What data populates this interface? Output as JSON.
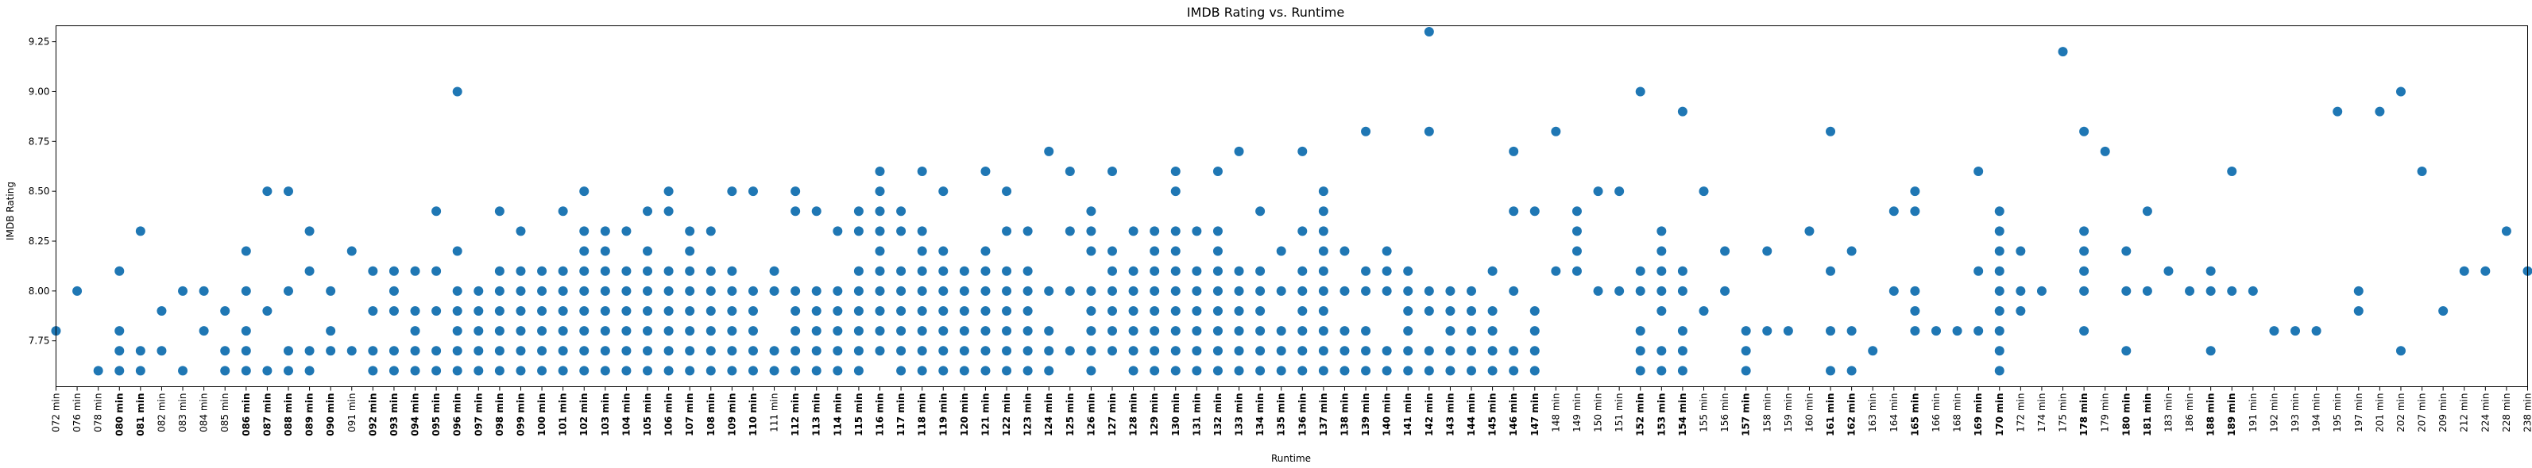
{
  "chart_data": {
    "type": "scatter",
    "title": "IMDB Rating vs. Runtime",
    "xlabel": "Runtime",
    "ylabel": "IMDB Rating",
    "ylim": [
      7.52,
      9.33
    ],
    "yticks": [
      7.75,
      8.0,
      8.25,
      8.5,
      8.75,
      9.0,
      9.25
    ],
    "ytick_labels": [
      "7.75",
      "8.00",
      "8.25",
      "8.50",
      "8.75",
      "9.00",
      "9.25"
    ],
    "grid": false,
    "color": "#1f77b4",
    "categories": [
      "072 min",
      "076 min",
      "078 min",
      "080 min",
      "081 min",
      "082 min",
      "083 min",
      "084 min",
      "085 min",
      "086 min",
      "087 min",
      "088 min",
      "089 min",
      "090 min",
      "091 min",
      "092 min",
      "093 min",
      "094 min",
      "095 min",
      "096 min",
      "097 min",
      "098 min",
      "099 min",
      "100 min",
      "101 min",
      "102 min",
      "103 min",
      "104 min",
      "105 min",
      "106 min",
      "107 min",
      "108 min",
      "109 min",
      "110 min",
      "111 min",
      "112 min",
      "113 min",
      "114 min",
      "115 min",
      "116 min",
      "117 min",
      "118 min",
      "119 min",
      "120 min",
      "121 min",
      "122 min",
      "123 min",
      "124 min",
      "125 min",
      "126 min",
      "127 min",
      "128 min",
      "129 min",
      "130 min",
      "131 min",
      "132 min",
      "133 min",
      "134 min",
      "135 min",
      "136 min",
      "137 min",
      "138 min",
      "139 min",
      "140 min",
      "141 min",
      "142 min",
      "143 min",
      "144 min",
      "145 min",
      "146 min",
      "147 min",
      "148 min",
      "149 min",
      "150 min",
      "151 min",
      "152 min",
      "153 min",
      "154 min",
      "155 min",
      "156 min",
      "157 min",
      "158 min",
      "159 min",
      "160 min",
      "161 min",
      "162 min",
      "163 min",
      "164 min",
      "165 min",
      "166 min",
      "168 min",
      "169 min",
      "170 min",
      "172 min",
      "174 min",
      "175 min",
      "178 min",
      "179 min",
      "180 min",
      "181 min",
      "183 min",
      "186 min",
      "188 min",
      "189 min",
      "191 min",
      "192 min",
      "193 min",
      "194 min",
      "195 min",
      "197 min",
      "201 min",
      "202 min",
      "207 min",
      "209 min",
      "212 min",
      "224 min",
      "228 min",
      "238 min"
    ],
    "bold_categories": [
      "080 min",
      "081 min",
      "086 min",
      "087 min",
      "088 min",
      "089 min",
      "090 min",
      "092 min",
      "093 min",
      "094 min",
      "095 min",
      "096 min",
      "097 min",
      "098 min",
      "099 min",
      "100 min",
      "101 min",
      "102 min",
      "103 min",
      "104 min",
      "105 min",
      "106 min",
      "107 min",
      "108 min",
      "109 min",
      "110 min",
      "112 min",
      "113 min",
      "114 min",
      "115 min",
      "116 min",
      "117 min",
      "118 min",
      "119 min",
      "120 min",
      "121 min",
      "122 min",
      "123 min",
      "124 min",
      "125 min",
      "126 min",
      "127 min",
      "128 min",
      "129 min",
      "130 min",
      "131 min",
      "132 min",
      "133 min",
      "134 min",
      "135 min",
      "136 min",
      "137 min",
      "138 min",
      "139 min",
      "140 min",
      "141 min",
      "142 min",
      "143 min",
      "144 min",
      "145 min",
      "146 min",
      "147 min",
      "152 min",
      "153 min",
      "154 min",
      "157 min",
      "161 min",
      "162 min",
      "165 min",
      "169 min",
      "170 min",
      "178 min",
      "180 min",
      "181 min",
      "188 min",
      "189 min"
    ],
    "values": [
      [
        7.8
      ],
      [
        8.0
      ],
      [
        7.6
      ],
      [
        7.6,
        7.7,
        7.8,
        8.1
      ],
      [
        7.6,
        7.7,
        8.3
      ],
      [
        7.7,
        7.9
      ],
      [
        7.6,
        8.0
      ],
      [
        7.8,
        8.0
      ],
      [
        7.6,
        7.7,
        7.9
      ],
      [
        7.6,
        7.7,
        7.8,
        8.0,
        8.2
      ],
      [
        7.6,
        7.9,
        8.5
      ],
      [
        7.6,
        7.7,
        8.0,
        8.5
      ],
      [
        7.6,
        7.7,
        8.1,
        8.3
      ],
      [
        7.7,
        7.8,
        8.0
      ],
      [
        7.7,
        8.2
      ],
      [
        7.6,
        7.7,
        7.9,
        8.1
      ],
      [
        7.6,
        7.7,
        7.9,
        8.0,
        8.1
      ],
      [
        7.6,
        7.7,
        7.8,
        7.9,
        8.1
      ],
      [
        7.6,
        7.7,
        7.9,
        8.1,
        8.4
      ],
      [
        7.6,
        7.7,
        7.8,
        7.9,
        8.0,
        8.2,
        9.0
      ],
      [
        7.6,
        7.7,
        7.8,
        7.9,
        8.0
      ],
      [
        7.6,
        7.7,
        7.8,
        7.9,
        8.0,
        8.1,
        8.4
      ],
      [
        7.6,
        7.7,
        7.8,
        7.9,
        8.0,
        8.1,
        8.3
      ],
      [
        7.6,
        7.7,
        7.8,
        7.9,
        8.0,
        8.1
      ],
      [
        7.6,
        7.7,
        7.8,
        7.9,
        8.0,
        8.1,
        8.4
      ],
      [
        7.6,
        7.7,
        7.8,
        7.9,
        8.0,
        8.1,
        8.2,
        8.3,
        8.5
      ],
      [
        7.6,
        7.7,
        7.8,
        7.9,
        8.0,
        8.1,
        8.2,
        8.3
      ],
      [
        7.6,
        7.7,
        7.8,
        7.9,
        8.0,
        8.1,
        8.3
      ],
      [
        7.6,
        7.7,
        7.8,
        7.9,
        8.0,
        8.1,
        8.2,
        8.4
      ],
      [
        7.6,
        7.7,
        7.8,
        7.9,
        8.0,
        8.1,
        8.4,
        8.5
      ],
      [
        7.6,
        7.7,
        7.8,
        7.9,
        8.0,
        8.1,
        8.2,
        8.3
      ],
      [
        7.6,
        7.7,
        7.8,
        7.9,
        8.0,
        8.1,
        8.3
      ],
      [
        7.6,
        7.7,
        7.8,
        7.9,
        8.0,
        8.1,
        8.5
      ],
      [
        7.6,
        7.7,
        7.8,
        7.9,
        8.0,
        8.5
      ],
      [
        7.6,
        7.7,
        8.0,
        8.1
      ],
      [
        7.6,
        7.7,
        7.8,
        7.9,
        8.0,
        8.4,
        8.5
      ],
      [
        7.6,
        7.7,
        7.8,
        7.9,
        8.0,
        8.4
      ],
      [
        7.6,
        7.7,
        7.8,
        7.9,
        8.0,
        8.3
      ],
      [
        7.6,
        7.7,
        7.8,
        7.9,
        8.0,
        8.1,
        8.3,
        8.4
      ],
      [
        7.7,
        7.8,
        7.9,
        8.0,
        8.1,
        8.2,
        8.3,
        8.4,
        8.5,
        8.6
      ],
      [
        7.6,
        7.7,
        7.8,
        7.9,
        8.0,
        8.1,
        8.3,
        8.4
      ],
      [
        7.6,
        7.7,
        7.8,
        7.9,
        8.0,
        8.1,
        8.2,
        8.3,
        8.6
      ],
      [
        7.6,
        7.7,
        7.8,
        7.9,
        8.0,
        8.1,
        8.2,
        8.5
      ],
      [
        7.6,
        7.7,
        7.8,
        7.9,
        8.0,
        8.1
      ],
      [
        7.6,
        7.7,
        7.8,
        7.9,
        8.0,
        8.1,
        8.2,
        8.6
      ],
      [
        7.6,
        7.7,
        7.8,
        7.9,
        8.0,
        8.1,
        8.3,
        8.5
      ],
      [
        7.6,
        7.7,
        7.8,
        7.9,
        8.0,
        8.1,
        8.3
      ],
      [
        7.6,
        7.7,
        7.8,
        8.0,
        8.7
      ],
      [
        7.7,
        8.0,
        8.3,
        8.6
      ],
      [
        7.6,
        7.7,
        7.8,
        7.9,
        8.0,
        8.2,
        8.3,
        8.4
      ],
      [
        7.7,
        7.8,
        7.9,
        8.0,
        8.1,
        8.2,
        8.6
      ],
      [
        7.6,
        7.7,
        7.8,
        7.9,
        8.0,
        8.1,
        8.3
      ],
      [
        7.6,
        7.7,
        7.8,
        7.9,
        8.0,
        8.1,
        8.2,
        8.3
      ],
      [
        7.6,
        7.7,
        7.8,
        7.9,
        8.0,
        8.1,
        8.2,
        8.3,
        8.5,
        8.6
      ],
      [
        7.6,
        7.7,
        7.8,
        7.9,
        8.0,
        8.1,
        8.3
      ],
      [
        7.6,
        7.7,
        7.8,
        7.9,
        8.0,
        8.1,
        8.2,
        8.3,
        8.6
      ],
      [
        7.6,
        7.7,
        7.8,
        7.9,
        8.0,
        8.1,
        8.7
      ],
      [
        7.6,
        7.7,
        7.8,
        7.9,
        8.0,
        8.1,
        8.4
      ],
      [
        7.6,
        7.7,
        7.8,
        8.0,
        8.2
      ],
      [
        7.6,
        7.7,
        7.8,
        7.9,
        8.0,
        8.1,
        8.3,
        8.7
      ],
      [
        7.6,
        7.7,
        7.8,
        7.9,
        8.0,
        8.1,
        8.2,
        8.3,
        8.4,
        8.5
      ],
      [
        7.6,
        7.7,
        7.8,
        8.0,
        8.2
      ],
      [
        7.6,
        7.7,
        7.8,
        8.0,
        8.1,
        8.8
      ],
      [
        7.6,
        7.7,
        8.0,
        8.1,
        8.2
      ],
      [
        7.6,
        7.7,
        7.8,
        7.9,
        8.0,
        8.1
      ],
      [
        7.6,
        7.7,
        7.9,
        8.0,
        8.8,
        9.3
      ],
      [
        7.6,
        7.7,
        7.8,
        7.9,
        8.0
      ],
      [
        7.6,
        7.7,
        7.8,
        7.9,
        8.0
      ],
      [
        7.6,
        7.7,
        7.8,
        7.9,
        8.1
      ],
      [
        7.6,
        7.7,
        8.0,
        8.4,
        8.7
      ],
      [
        7.6,
        7.7,
        7.8,
        7.9,
        8.4
      ],
      [
        8.1,
        8.8
      ],
      [
        8.1,
        8.2,
        8.3,
        8.4
      ],
      [
        8.0,
        8.5
      ],
      [
        8.0,
        8.5
      ],
      [
        7.6,
        7.7,
        7.8,
        8.0,
        8.1,
        9.0
      ],
      [
        7.6,
        7.7,
        7.9,
        8.0,
        8.1,
        8.2,
        8.3
      ],
      [
        7.6,
        7.7,
        7.8,
        8.0,
        8.1,
        8.9
      ],
      [
        7.9,
        8.5
      ],
      [
        8.0,
        8.2
      ],
      [
        7.6,
        7.7,
        7.8
      ],
      [
        7.8,
        8.2
      ],
      [
        7.8
      ],
      [
        8.3
      ],
      [
        7.6,
        7.8,
        8.1,
        8.8
      ],
      [
        7.6,
        7.8,
        8.2
      ],
      [
        7.7
      ],
      [
        8.0,
        8.4
      ],
      [
        7.8,
        7.9,
        8.0,
        8.4,
        8.5
      ],
      [
        7.8
      ],
      [
        7.8
      ],
      [
        7.8,
        8.1,
        8.6
      ],
      [
        7.6,
        7.7,
        7.8,
        7.9,
        8.0,
        8.1,
        8.2,
        8.3,
        8.4
      ],
      [
        7.9,
        8.0,
        8.2
      ],
      [
        8.0
      ],
      [
        9.2
      ],
      [
        7.8,
        8.0,
        8.1,
        8.2,
        8.3,
        8.8
      ],
      [
        8.7
      ],
      [
        7.7,
        8.0,
        8.2
      ],
      [
        8.0,
        8.4
      ],
      [
        8.1
      ],
      [
        8.0
      ],
      [
        7.7,
        8.0,
        8.1
      ],
      [
        8.0,
        8.6
      ],
      [
        8.0
      ],
      [
        7.8
      ],
      [
        7.8
      ],
      [
        7.8
      ],
      [
        8.9
      ],
      [
        7.9,
        8.0
      ],
      [
        8.9
      ],
      [
        7.7,
        9.0
      ],
      [
        8.6
      ],
      [
        7.9
      ],
      [
        8.1
      ],
      [
        8.1
      ],
      [
        8.3
      ],
      [
        8.1
      ]
    ]
  }
}
